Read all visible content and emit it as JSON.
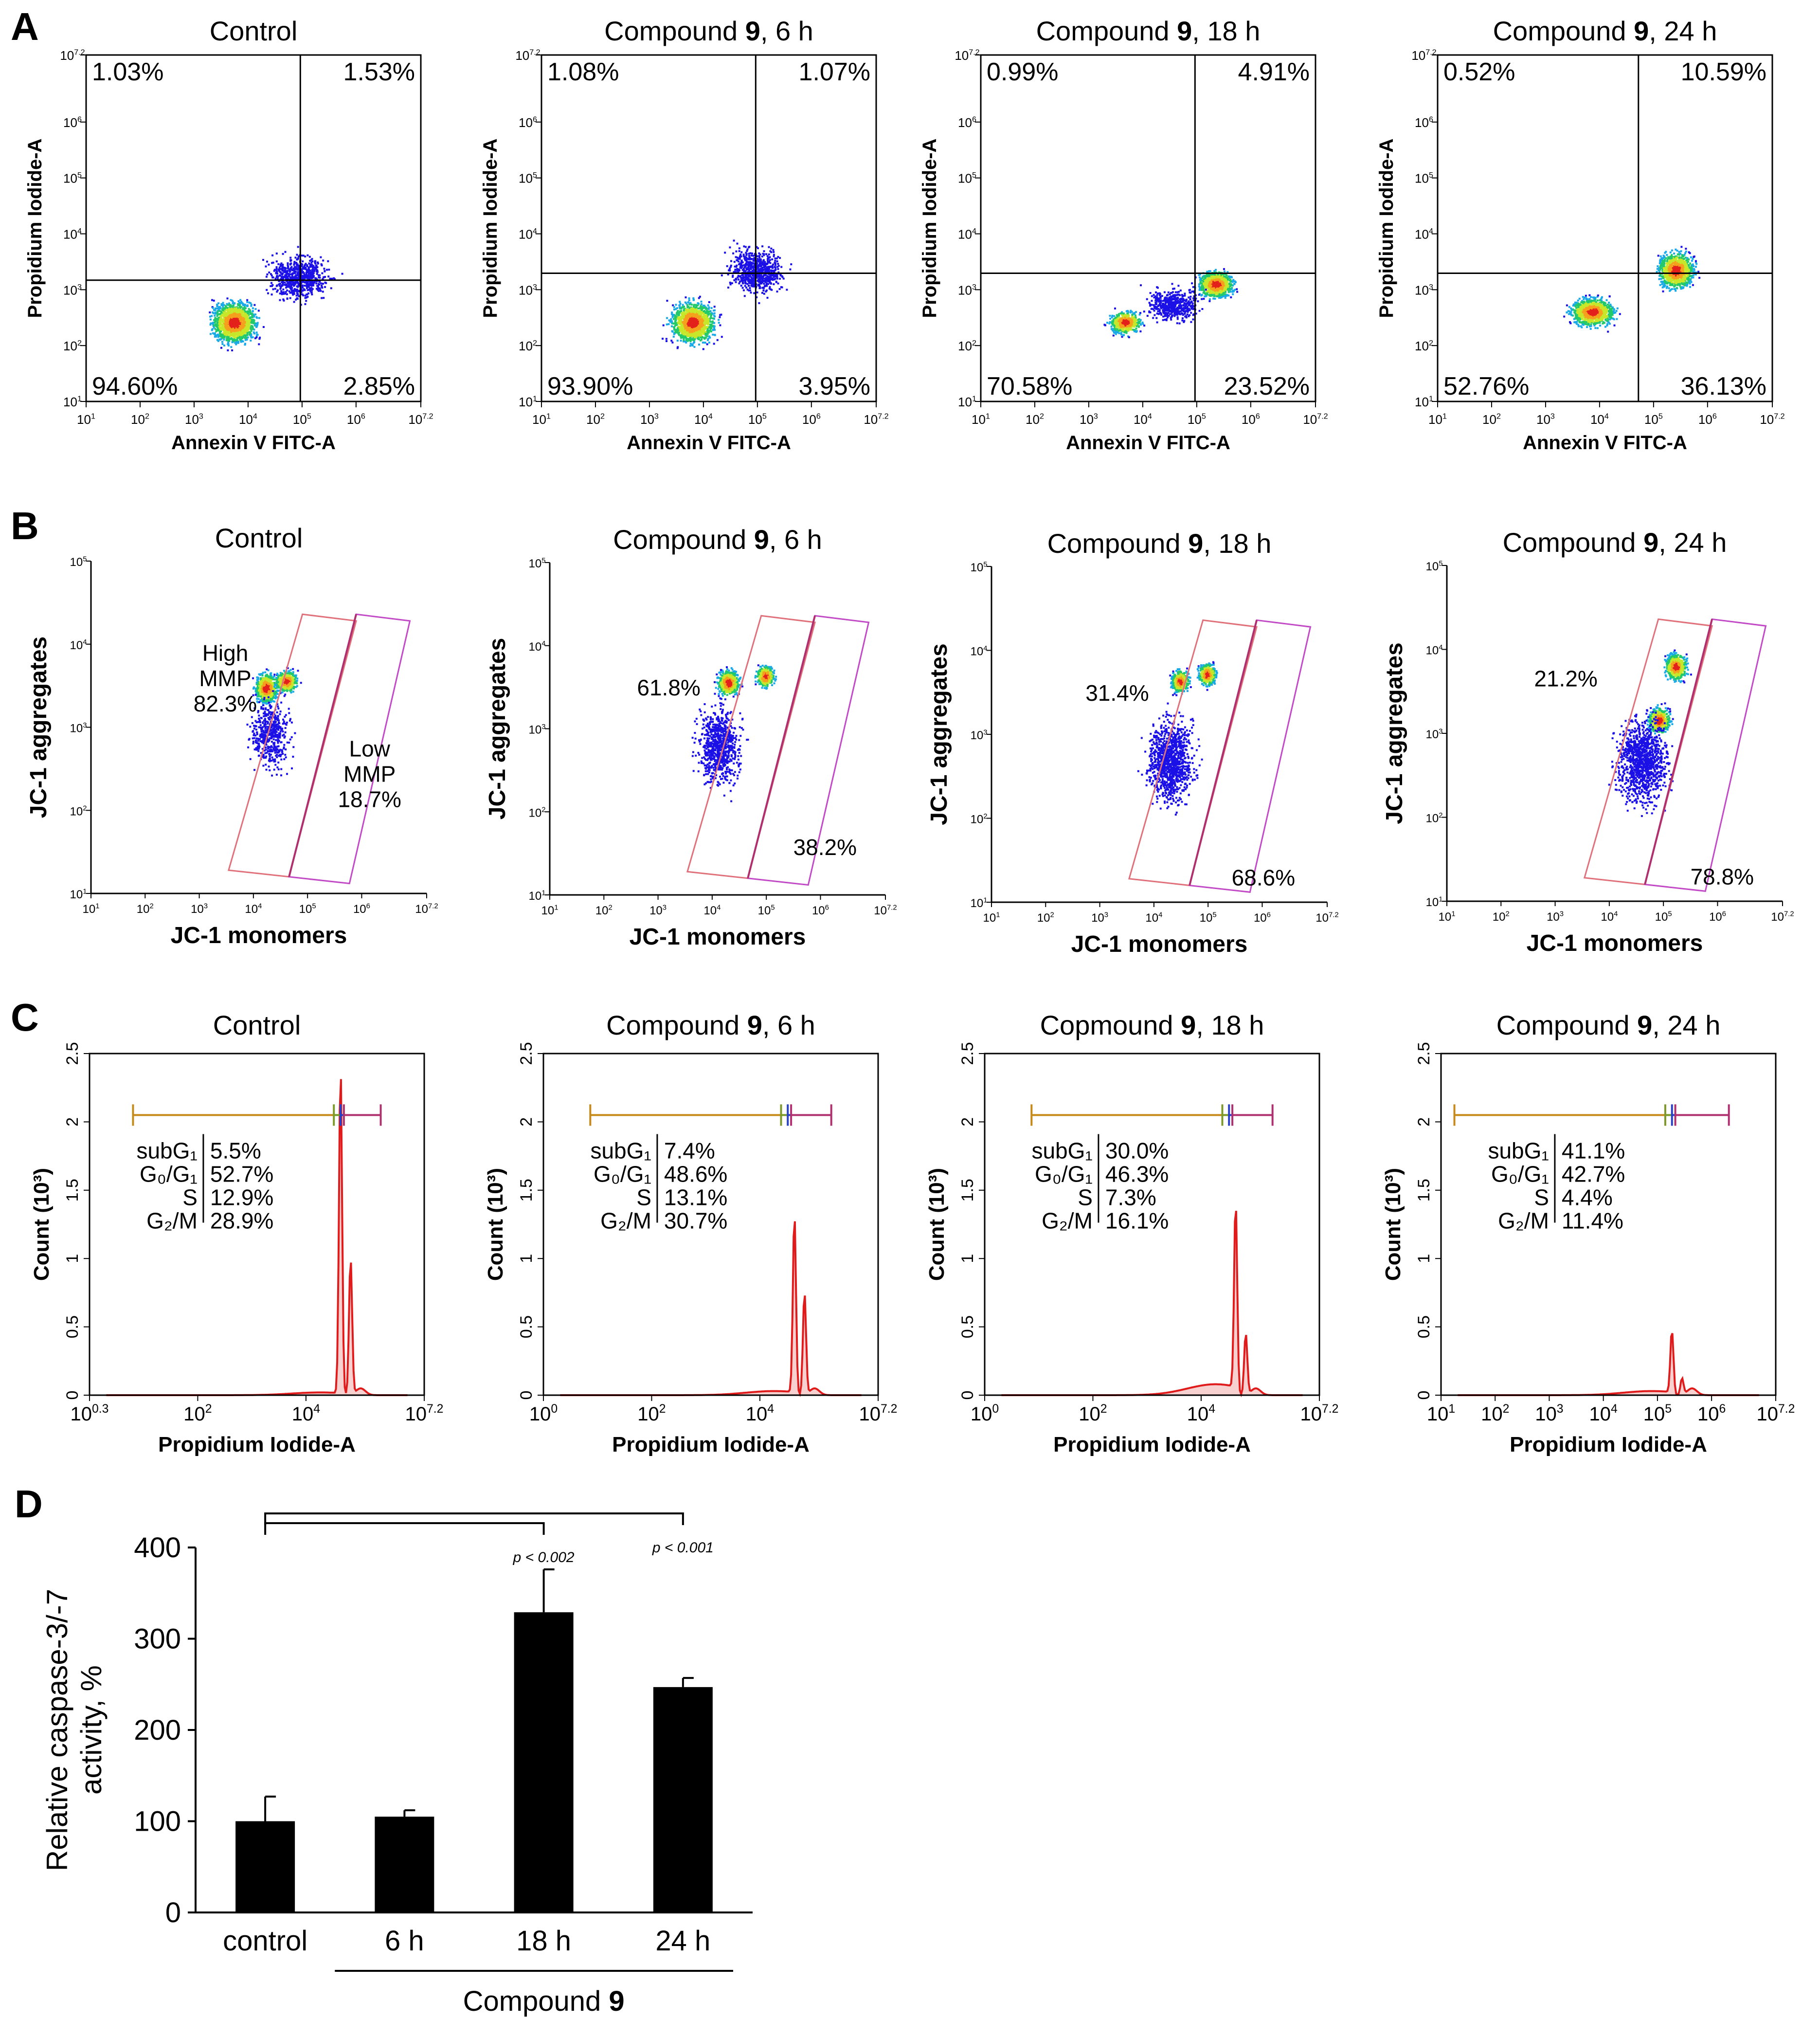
{
  "panels": {
    "A": {
      "letter": "A",
      "x_label": "Annexin V FITC-A",
      "y_label": "Propidium Iodide-A",
      "x_ticks": [
        "10",
        "10",
        "10",
        "10",
        "10",
        "10",
        "10"
      ],
      "x_tick_exp": [
        "1",
        "2",
        "3",
        "4",
        "5",
        "6",
        "7.2"
      ],
      "y_ticks": [
        "10",
        "10",
        "10",
        "10",
        "10",
        "10",
        "10"
      ],
      "y_tick_exp": [
        "1",
        "2",
        "3",
        "4",
        "5",
        "6",
        "7.2"
      ],
      "plots": [
        {
          "title_pre": "Control",
          "title_bold": "",
          "title_post": "",
          "q_ul": "1.03%",
          "q_ur": "1.53%",
          "q_ll": "94.60%",
          "q_lr": "2.85%"
        },
        {
          "title_pre": "Compound ",
          "title_bold": "9",
          "title_post": ", 6 h",
          "q_ul": "1.08%",
          "q_ur": "1.07%",
          "q_ll": "93.90%",
          "q_lr": "3.95%"
        },
        {
          "title_pre": "Compound ",
          "title_bold": "9",
          "title_post": ", 18 h",
          "q_ul": "0.99%",
          "q_ur": "4.91%",
          "q_ll": "70.58%",
          "q_lr": "23.52%"
        },
        {
          "title_pre": "Compound ",
          "title_bold": "9",
          "title_post": ", 24 h",
          "q_ul": "0.52%",
          "q_ur": "10.59%",
          "q_ll": "52.76%",
          "q_lr": "36.13%"
        }
      ]
    },
    "B": {
      "letter": "B",
      "x_label": "JC-1 monomers",
      "y_label": "JC-1 aggregates",
      "x_ticks": [
        "10",
        "10",
        "10",
        "10",
        "10",
        "10",
        "10"
      ],
      "x_tick_exp": [
        "1",
        "2",
        "3",
        "4",
        "5",
        "6",
        "7.2"
      ],
      "y_ticks": [
        "10",
        "10",
        "10",
        "10",
        "10"
      ],
      "y_tick_exp": [
        "1",
        "2",
        "3",
        "4",
        "5"
      ],
      "plots": [
        {
          "title_pre": "Control",
          "title_bold": "",
          "title_post": "",
          "high_lines": [
            "High",
            "MMP",
            "82.3%"
          ],
          "low_lines": [
            "Low",
            "MMP",
            "18.7%"
          ]
        },
        {
          "title_pre": "Compound ",
          "title_bold": "9",
          "title_post": ", 6 h",
          "high_lines": [
            "61.8%"
          ],
          "low_lines": [
            "38.2%"
          ]
        },
        {
          "title_pre": "Compound ",
          "title_bold": "9",
          "title_post": ", 18 h",
          "high_lines": [
            "31.4%"
          ],
          "low_lines": [
            "68.6%"
          ]
        },
        {
          "title_pre": "Compound ",
          "title_bold": "9",
          "title_post": ", 24 h",
          "high_lines": [
            "21.2%"
          ],
          "low_lines": [
            "78.8%"
          ]
        }
      ]
    },
    "C": {
      "letter": "C",
      "x_label": "Propidium Iodide-A",
      "y_label": "Count (10³)",
      "y_ticks": [
        "0",
        "0.5",
        "1",
        "1.5",
        "2",
        "2.5"
      ],
      "phase_labels": [
        "subG₁",
        "G₀/G₁",
        "S",
        "G₂/M"
      ],
      "plots": [
        {
          "title_pre": "Control",
          "title_bold": "",
          "title_post": "",
          "x_ticks": [
            "10",
            "10",
            "10",
            "10"
          ],
          "x_tick_exp": [
            "0.3",
            "2",
            "4",
            "7.2"
          ],
          "values": [
            "5.5%",
            "52.7%",
            "12.9%",
            "28.9%"
          ]
        },
        {
          "title_pre": "Compound ",
          "title_bold": "9",
          "title_post": ", 6 h",
          "x_ticks": [
            "10",
            "10",
            "10",
            "10"
          ],
          "x_tick_exp": [
            "0",
            "2",
            "4",
            "7.2"
          ],
          "values": [
            "7.4%",
            "48.6%",
            "13.1%",
            "30.7%"
          ]
        },
        {
          "title_pre": "Copmound ",
          "title_bold": "9",
          "title_post": ", 18 h",
          "x_ticks": [
            "10",
            "10",
            "10",
            "10"
          ],
          "x_tick_exp": [
            "0",
            "2",
            "4",
            "7.2"
          ],
          "values": [
            "30.0%",
            "46.3%",
            "7.3%",
            "16.1%"
          ]
        },
        {
          "title_pre": "Compound ",
          "title_bold": "9",
          "title_post": ", 24 h",
          "x_ticks": [
            "10",
            "10",
            "10",
            "10",
            "10",
            "10",
            "10"
          ],
          "x_tick_exp": [
            "1",
            "2",
            "3",
            "4",
            "5",
            "6",
            "7.2"
          ],
          "values": [
            "41.1%",
            "42.7%",
            "4.4%",
            "11.4%"
          ]
        }
      ]
    }
  },
  "chart_data": {
    "type": "bar",
    "letter": "D",
    "title": "",
    "categories": [
      "control",
      "6 h",
      "18 h",
      "24 h"
    ],
    "values": [
      100,
      105,
      329,
      247
    ],
    "errors": [
      27,
      7,
      47,
      10
    ],
    "ylabel_lines": [
      "Relative caspase-3/-7",
      "activity, %"
    ],
    "y_ticks": [
      "0",
      "100",
      "200",
      "300",
      "400"
    ],
    "ylim": [
      0,
      400
    ],
    "group_label_pre": "Compound ",
    "group_label_bold": "9",
    "significance": [
      {
        "from": 0,
        "to": 2,
        "label": "p < 0.002"
      },
      {
        "from": 0,
        "to": 3,
        "label": "p < 0.001"
      }
    ],
    "colors": {
      "bar": "#000000"
    }
  }
}
